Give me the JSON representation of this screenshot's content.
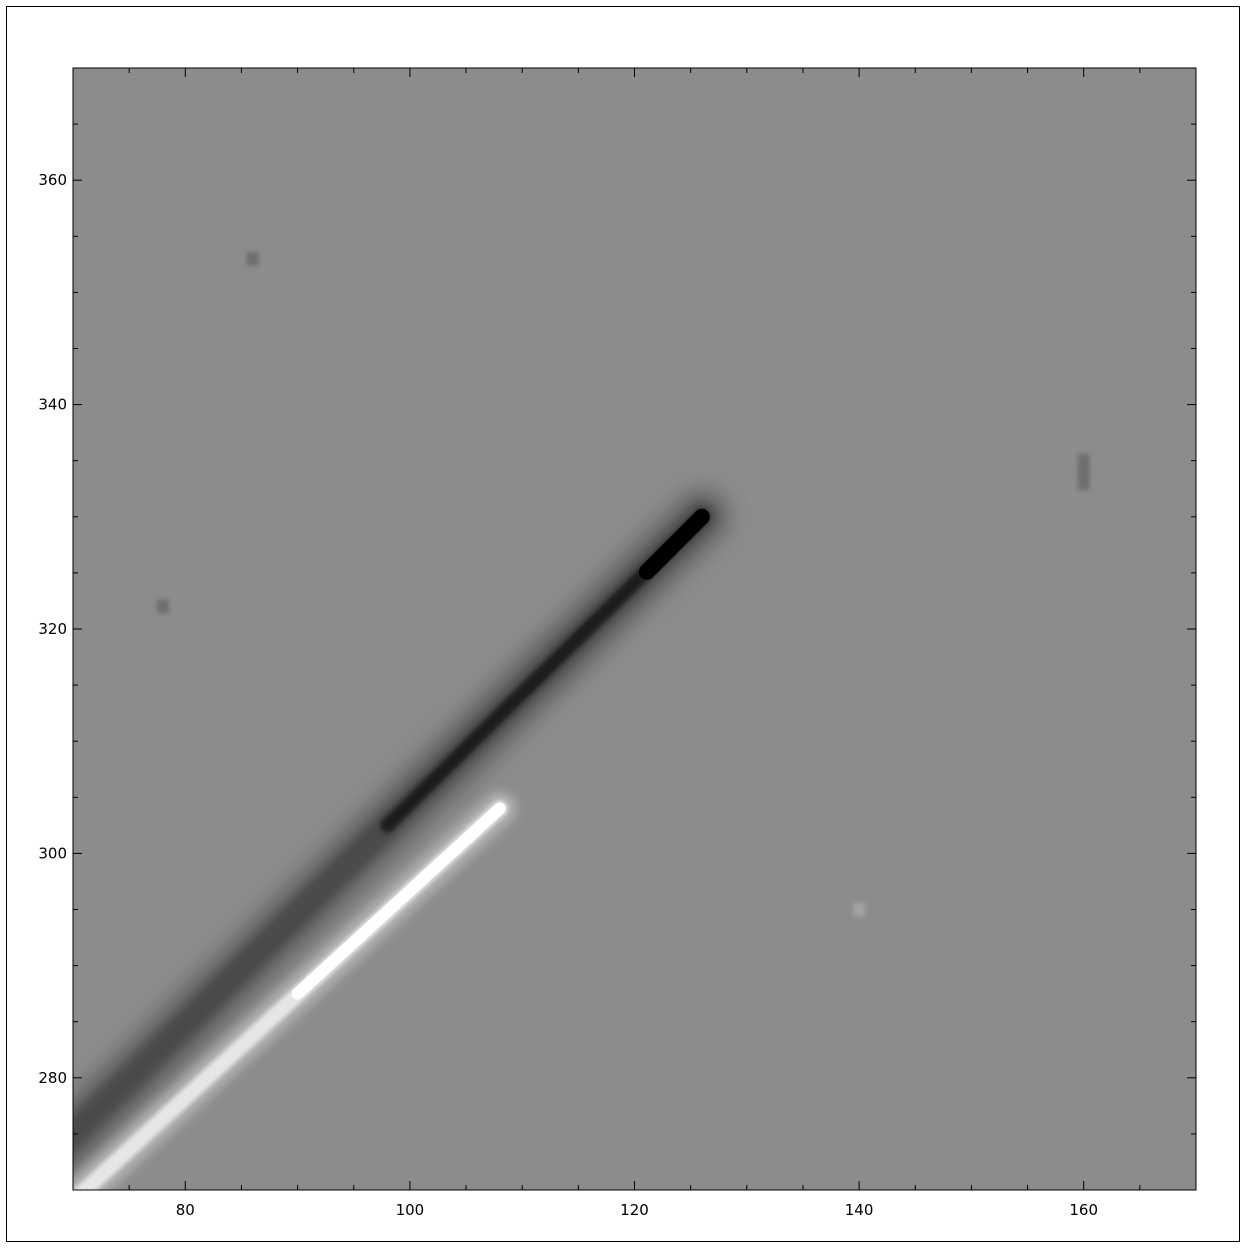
{
  "figure": {
    "kind": "grayscale difference image with pixel-coordinate axes",
    "xlim": [
      70,
      170
    ],
    "ylim": [
      270,
      370
    ],
    "x_tick_labels": [
      "80",
      "100",
      "120",
      "140",
      "160"
    ],
    "y_tick_labels": [
      "280",
      "300",
      "320",
      "340",
      "360"
    ],
    "x_ticks": [
      80,
      100,
      120,
      140,
      160
    ],
    "y_ticks": [
      280,
      300,
      320,
      340,
      360
    ],
    "minor_tick_step": 5,
    "background_gray": "#8c8c8c",
    "features": [
      {
        "name": "dark-streak",
        "tone": "dark",
        "from": [
          70,
          275
        ],
        "to": [
          126,
          330
        ]
      },
      {
        "name": "bright-streak",
        "tone": "bright",
        "from": [
          72,
          271
        ],
        "to": [
          108,
          304
        ]
      },
      {
        "name": "dark-spot",
        "tone": "dark",
        "at": [
          86,
          353
        ]
      },
      {
        "name": "dark-spot",
        "tone": "dark",
        "at": [
          160,
          334
        ]
      },
      {
        "name": "dark-spot",
        "tone": "dark",
        "at": [
          78,
          322
        ]
      },
      {
        "name": "light-spot",
        "tone": "bright",
        "at": [
          140,
          295
        ]
      }
    ]
  }
}
